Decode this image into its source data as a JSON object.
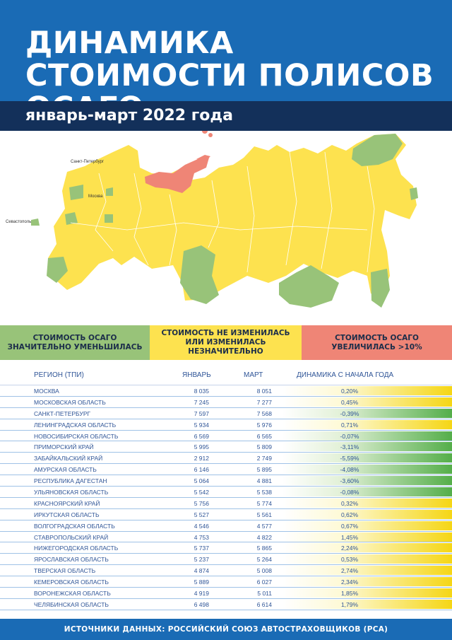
{
  "header": {
    "title": "ДИНАМИКА СТОИМОСТИ ПОЛИСОВ ОСАГО",
    "subtitle": "январь-март 2022 года"
  },
  "map": {
    "cities": [
      "Санкт-Петербург",
      "Москва",
      "Севастополь"
    ],
    "colors": {
      "decrease": "#98c379",
      "unchanged": "#fde24f",
      "increase": "#ef8576"
    }
  },
  "legend": {
    "decrease": "СТОИМОСТЬ ОСАГО ЗНАЧИТЕЛЬНО УМЕНЬШИЛАСЬ",
    "unchanged": "СТОИМОСТЬ НЕ ИЗМЕНИЛАСЬ ИЛИ ИЗМЕНИЛАСЬ НЕЗНАЧИТЕЛЬНО",
    "increase": "СТОИМОСТЬ ОСАГО УВЕЛИЧИЛАСЬ >10%"
  },
  "table": {
    "headers": [
      "РЕГИОН (ТПИ)",
      "ЯНВАРЬ",
      "МАРТ",
      "ДИНАМИКА С НАЧАЛА ГОДА"
    ]
  },
  "chart_data": {
    "type": "table",
    "columns": [
      "РЕГИОН (ТПИ)",
      "ЯНВАРЬ",
      "МАРТ",
      "ДИНАМИКА С НАЧАЛА ГОДА"
    ],
    "rows": [
      {
        "region": "Москва",
        "jan": "8 035",
        "mar": "8 051",
        "change": "0,20%",
        "value": 0.2
      },
      {
        "region": "Московская область",
        "jan": "7 245",
        "mar": "7 277",
        "change": "0,45%",
        "value": 0.45
      },
      {
        "region": "Санкт-Петербург",
        "jan": "7 597",
        "mar": "7 568",
        "change": "-0,39%",
        "value": -0.39
      },
      {
        "region": "Ленинградская область",
        "jan": "5 934",
        "mar": "5 976",
        "change": "0,71%",
        "value": 0.71
      },
      {
        "region": "Новосибирская область",
        "jan": "6 569",
        "mar": "6 565",
        "change": "-0,07%",
        "value": -0.07
      },
      {
        "region": "Приморский край",
        "jan": "5 995",
        "mar": "5 809",
        "change": "-3,11%",
        "value": -3.11
      },
      {
        "region": "Забайкальский край",
        "jan": "2 912",
        "mar": "2 749",
        "change": "-5,59%",
        "value": -5.59
      },
      {
        "region": "Амурская область",
        "jan": "6 146",
        "mar": "5 895",
        "change": "-4,08%",
        "value": -4.08
      },
      {
        "region": "Республика Дагестан",
        "jan": "5 064",
        "mar": "4 881",
        "change": "-3,60%",
        "value": -3.6
      },
      {
        "region": "Ульяновская область",
        "jan": "5 542",
        "mar": "5 538",
        "change": "-0,08%",
        "value": -0.08
      },
      {
        "region": "Красноярский край",
        "jan": "5 756",
        "mar": "5 774",
        "change": "0,32%",
        "value": 0.32
      },
      {
        "region": "Иркутская область",
        "jan": "5 527",
        "mar": "5 561",
        "change": "0,62%",
        "value": 0.62
      },
      {
        "region": "Волгоградская область",
        "jan": "4 546",
        "mar": "4 577",
        "change": "0,67%",
        "value": 0.67
      },
      {
        "region": "Ставропольский край",
        "jan": "4 753",
        "mar": "4 822",
        "change": "1,45%",
        "value": 1.45
      },
      {
        "region": "Нижегородская область",
        "jan": "5 737",
        "mar": "5 865",
        "change": "2,24%",
        "value": 2.24
      },
      {
        "region": "Ярославская область",
        "jan": "5 237",
        "mar": "5 264",
        "change": "0,53%",
        "value": 0.53
      },
      {
        "region": "Тверская область",
        "jan": "4 874",
        "mar": "5 008",
        "change": "2,74%",
        "value": 2.74
      },
      {
        "region": "Кемеровская область",
        "jan": "5 889",
        "mar": "6 027",
        "change": "2,34%",
        "value": 2.34
      },
      {
        "region": "Воронежская область",
        "jan": "4 919",
        "mar": "5 011",
        "change": "1,85%",
        "value": 1.85
      },
      {
        "region": "Челябинская область",
        "jan": "6 498",
        "mar": "6 614",
        "change": "1,79%",
        "value": 1.79
      }
    ]
  },
  "footer": {
    "source": "ИСТОЧНИКИ ДАННЫХ: РОССИЙСКИЙ СОЮЗ АВТОСТРАХОВЩИКОВ (РСА)"
  }
}
